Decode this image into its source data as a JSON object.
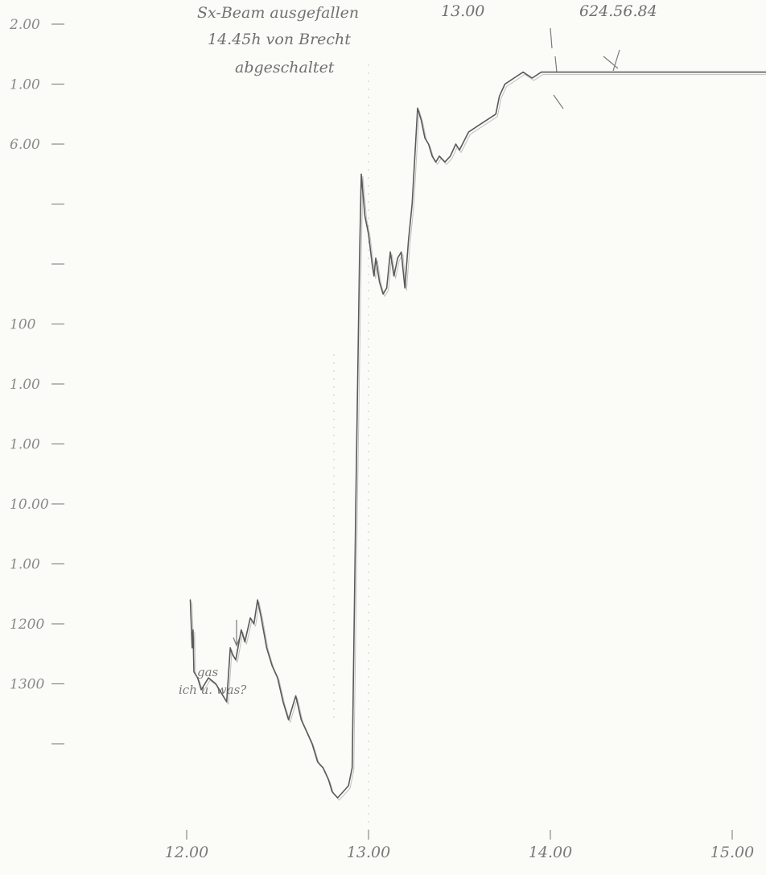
{
  "chart_data": {
    "type": "line",
    "title": "",
    "xlabel": "",
    "ylabel": "",
    "grid": false,
    "y_ticks": [
      "2.00",
      "1.00",
      "6.00",
      "",
      "",
      "100",
      "1.00",
      "1.00",
      "10.00",
      "1.00",
      "1200",
      "1300",
      ""
    ],
    "x_ticks": [
      "12.00",
      "13.00",
      "14.00",
      "15.00"
    ],
    "annotations": [
      {
        "id": "top_note_line1",
        "text": "Sx-Beam ausgefallen"
      },
      {
        "id": "top_note_line2",
        "text": "14.45h von Brecht"
      },
      {
        "id": "top_note_line3",
        "text": "abgeschaltet"
      },
      {
        "id": "top_time",
        "text": "13.00"
      },
      {
        "id": "top_value",
        "text": "624.56.84"
      },
      {
        "id": "bottom_note_line1",
        "text": "gas"
      },
      {
        "id": "bottom_note_line2",
        "text": "ich u. was?"
      }
    ],
    "x_unit": "hour",
    "y_unit": "tick_index",
    "series": [
      {
        "x": [
          12.02,
          12.03,
          12.035,
          12.04,
          12.06,
          12.08,
          12.1,
          12.12,
          12.16,
          12.2,
          12.22,
          12.24,
          12.25,
          12.27,
          12.3,
          12.32,
          12.35,
          12.37,
          12.39,
          12.41,
          12.44,
          12.47,
          12.5,
          12.53,
          12.56,
          12.6,
          12.63,
          12.66,
          12.69,
          12.72,
          12.75,
          12.78,
          12.8,
          12.83,
          12.86,
          12.89,
          12.91,
          12.93,
          12.95,
          12.96,
          12.98,
          13.0,
          13.02,
          13.03,
          13.04,
          13.06,
          13.08,
          13.1,
          13.12,
          13.14,
          13.16,
          13.18,
          13.2,
          13.22,
          13.24,
          13.27,
          13.29,
          13.31,
          13.33,
          13.35,
          13.37,
          13.39,
          13.42,
          13.45,
          13.48,
          13.5,
          13.55,
          13.6,
          13.65,
          13.7,
          13.72,
          13.75,
          13.8,
          13.85,
          13.9,
          13.95,
          14.0,
          14.05,
          14.1,
          14.15,
          14.2,
          14.25,
          14.3,
          14.35,
          14.4,
          14.45,
          14.5,
          14.55,
          14.6,
          14.7,
          14.8,
          14.9,
          15.0,
          15.05,
          15.1,
          15.15,
          15.2
        ],
        "y": [
          9.6,
          10.4,
          10.1,
          10.8,
          10.9,
          11.1,
          11.0,
          10.9,
          11.0,
          11.2,
          11.3,
          10.4,
          10.5,
          10.6,
          10.1,
          10.3,
          9.9,
          10.0,
          9.6,
          9.9,
          10.4,
          10.7,
          10.9,
          11.3,
          11.6,
          11.2,
          11.6,
          11.8,
          12.0,
          12.3,
          12.4,
          12.6,
          12.8,
          12.9,
          12.8,
          12.7,
          12.4,
          8.0,
          4.0,
          2.5,
          3.2,
          3.5,
          4.0,
          4.2,
          3.9,
          4.3,
          4.5,
          4.4,
          3.8,
          4.2,
          3.9,
          3.8,
          4.4,
          3.6,
          3.0,
          1.4,
          1.6,
          1.9,
          2.0,
          2.2,
          2.3,
          2.2,
          2.3,
          2.2,
          2.0,
          2.1,
          1.8,
          1.7,
          1.6,
          1.5,
          1.2,
          1.0,
          0.9,
          0.8,
          0.9,
          0.8,
          0.8,
          0.8,
          0.8,
          0.8,
          0.8,
          0.8,
          0.8,
          0.8,
          0.8,
          0.8,
          0.8,
          0.8,
          0.8,
          0.8,
          0.8,
          0.8,
          0.8,
          0.8,
          0.8,
          0.8,
          0.8
        ]
      }
    ],
    "colors": {
      "pencil": "#5a5a5a",
      "paper": "#fbfbf8"
    }
  }
}
